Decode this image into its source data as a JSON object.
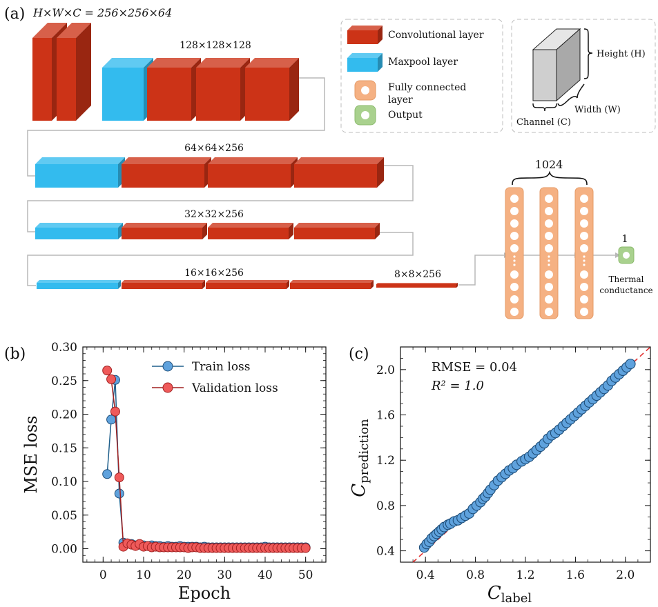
{
  "panel_a": {
    "label": "(a)",
    "input_dims_label": "H×W×C = 256×256×64",
    "stage_labels": [
      "128×128×128",
      "64×64×256",
      "32×32×256",
      "16×16×256",
      "8×8×256"
    ],
    "fc_label": "1024",
    "output_count": "1",
    "output_label": [
      "Thermal",
      "conductance"
    ],
    "legend": [
      {
        "text": "Convolutional layer",
        "kind": "conv"
      },
      {
        "text": "Maxpool layer",
        "kind": "pool"
      },
      {
        "text": "Fully connected",
        "text2": "layer",
        "kind": "fc"
      },
      {
        "text": "Output",
        "kind": "out"
      }
    ],
    "cube": {
      "height": "Height (H)",
      "width": "Width (W)",
      "channel": "Channel (C)"
    },
    "colors": {
      "conv": "#cc3317",
      "pool": "#33bbee",
      "fc": "#f5b183",
      "out": "#a9d18e"
    }
  },
  "panel_b": {
    "label": "(b)"
  },
  "panel_c": {
    "label": "(c)",
    "rmse_text": "RMSE = 0.04",
    "r2_text": "R² = 1.0"
  },
  "chart_data": [
    {
      "type": "line",
      "xlabel": "Epoch",
      "ylabel": "MSE loss",
      "xlim": [
        -5,
        55
      ],
      "ylim": [
        -0.02,
        0.3
      ],
      "xticks": [
        0,
        10,
        20,
        30,
        40,
        50
      ],
      "yticks": [
        0.0,
        0.05,
        0.1,
        0.15,
        0.2,
        0.25,
        0.3
      ],
      "legend_position": "top-right",
      "series": [
        {
          "name": "Train loss",
          "color": "#5fa2dd",
          "x": [
            1,
            2,
            3,
            4,
            5,
            6,
            7,
            8,
            9,
            10,
            11,
            12,
            13,
            14,
            15,
            16,
            17,
            18,
            19,
            20,
            21,
            22,
            23,
            24,
            25,
            26,
            27,
            28,
            29,
            30,
            31,
            32,
            33,
            34,
            35,
            36,
            37,
            38,
            39,
            40,
            41,
            42,
            43,
            44,
            45,
            46,
            47,
            48,
            49,
            50
          ],
          "y": [
            0.111,
            0.192,
            0.251,
            0.082,
            0.009,
            0.008,
            0.007,
            0.005,
            0.006,
            0.005,
            0.004,
            0.005,
            0.004,
            0.004,
            0.003,
            0.004,
            0.003,
            0.003,
            0.004,
            0.003,
            0.003,
            0.003,
            0.003,
            0.002,
            0.003,
            0.002,
            0.002,
            0.002,
            0.002,
            0.002,
            0.002,
            0.002,
            0.002,
            0.002,
            0.002,
            0.002,
            0.002,
            0.002,
            0.002,
            0.003,
            0.002,
            0.002,
            0.002,
            0.002,
            0.002,
            0.002,
            0.002,
            0.002,
            0.002,
            0.002
          ]
        },
        {
          "name": "Validation loss",
          "color": "#ef5a5a",
          "x": [
            1,
            2,
            3,
            4,
            5,
            6,
            7,
            8,
            9,
            10,
            11,
            12,
            13,
            14,
            15,
            16,
            17,
            18,
            19,
            20,
            21,
            22,
            23,
            24,
            25,
            26,
            27,
            28,
            29,
            30,
            31,
            32,
            33,
            34,
            35,
            36,
            37,
            38,
            39,
            40,
            41,
            42,
            43,
            44,
            45,
            46,
            47,
            48,
            49,
            50
          ],
          "y": [
            0.265,
            0.252,
            0.204,
            0.106,
            0.003,
            0.008,
            0.006,
            0.004,
            0.007,
            0.003,
            0.004,
            0.002,
            0.003,
            0.002,
            0.002,
            0.002,
            0.002,
            0.002,
            0.002,
            0.002,
            0.001,
            0.002,
            0.002,
            0.001,
            0.001,
            0.001,
            0.001,
            0.001,
            0.001,
            0.001,
            0.001,
            0.001,
            0.001,
            0.001,
            0.001,
            0.001,
            0.001,
            0.001,
            0.001,
            0.001,
            0.001,
            0.001,
            0.001,
            0.001,
            0.001,
            0.001,
            0.001,
            0.001,
            0.001,
            0.001
          ]
        }
      ]
    },
    {
      "type": "scatter",
      "xlabel": "C_label",
      "ylabel": "C_prediction",
      "xlim": [
        0.2,
        2.2
      ],
      "ylim": [
        0.3,
        2.2
      ],
      "xticks": [
        0.4,
        0.8,
        1.2,
        1.6,
        2.0
      ],
      "yticks": [
        0.4,
        0.8,
        1.2,
        1.6,
        2.0
      ],
      "reference_line": "y = x (red dashed)",
      "series": [
        {
          "name": "",
          "color": "#5fa2dd",
          "x": [
            0.39,
            0.41,
            0.43,
            0.45,
            0.47,
            0.49,
            0.51,
            0.53,
            0.55,
            0.58,
            0.6,
            0.63,
            0.66,
            0.69,
            0.72,
            0.75,
            0.78,
            0.81,
            0.84,
            0.86,
            0.88,
            0.9,
            0.92,
            0.95,
            0.98,
            1.01,
            1.04,
            1.07,
            1.1,
            1.13,
            1.17,
            1.2,
            1.23,
            1.26,
            1.29,
            1.32,
            1.35,
            1.38,
            1.41,
            1.44,
            1.47,
            1.5,
            1.53,
            1.56,
            1.59,
            1.62,
            1.65,
            1.68,
            1.71,
            1.74,
            1.77,
            1.8,
            1.83,
            1.86,
            1.89,
            1.92,
            1.95,
            1.98,
            2.01,
            2.04
          ],
          "y": [
            0.43,
            0.46,
            0.48,
            0.51,
            0.53,
            0.55,
            0.57,
            0.59,
            0.61,
            0.63,
            0.64,
            0.66,
            0.67,
            0.69,
            0.71,
            0.73,
            0.77,
            0.8,
            0.83,
            0.86,
            0.88,
            0.91,
            0.94,
            0.98,
            1.02,
            1.05,
            1.08,
            1.11,
            1.13,
            1.16,
            1.19,
            1.21,
            1.23,
            1.26,
            1.29,
            1.32,
            1.35,
            1.39,
            1.42,
            1.44,
            1.47,
            1.5,
            1.53,
            1.56,
            1.59,
            1.62,
            1.65,
            1.68,
            1.71,
            1.74,
            1.77,
            1.8,
            1.83,
            1.86,
            1.9,
            1.93,
            1.96,
            1.99,
            2.02,
            2.05
          ]
        }
      ]
    }
  ]
}
